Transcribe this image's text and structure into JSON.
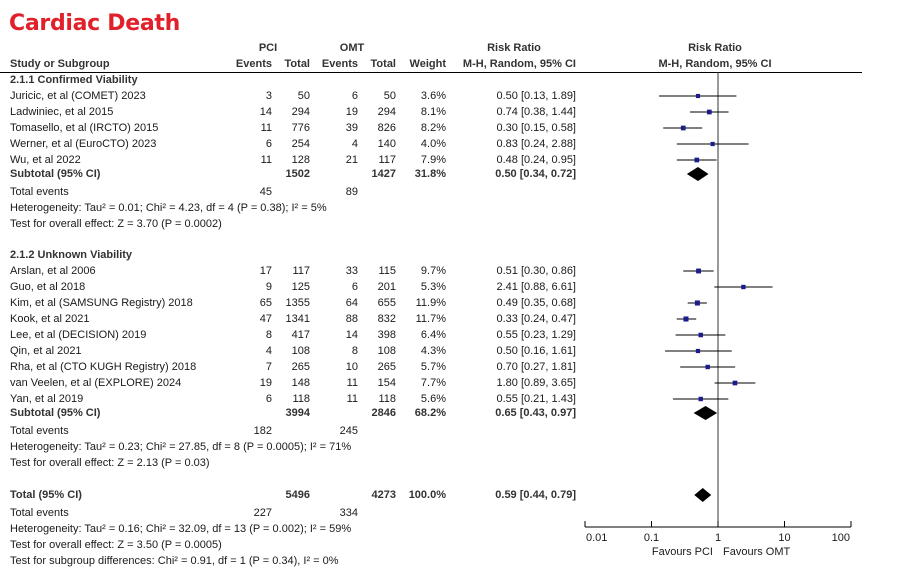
{
  "title": "Cardiac Death",
  "header": {
    "group1": "PCI",
    "group2": "OMT",
    "study_col": "Study or Subgroup",
    "events": "Events",
    "total": "Total",
    "weight": "Weight",
    "rr_title": "Risk Ratio",
    "rr_method": "M-H, Random, 95% CI",
    "plot_title": "Risk Ratio",
    "plot_method": "M-H, Random, 95% CI"
  },
  "subgroups": [
    {
      "name": "2.1.1 Confirmed Viability",
      "studies": [
        {
          "study": "Juricic, et al (COMET) 2023",
          "e1": "3",
          "n1": "50",
          "e2": "6",
          "n2": "50",
          "weight": "3.6%",
          "ci": "0.50 [0.13, 1.89]"
        },
        {
          "study": "Ladwiniec, et al 2015",
          "e1": "14",
          "n1": "294",
          "e2": "19",
          "n2": "294",
          "weight": "8.1%",
          "ci": "0.74 [0.38, 1.44]"
        },
        {
          "study": "Tomasello, et al (IRCTO) 2015",
          "e1": "11",
          "n1": "776",
          "e2": "39",
          "n2": "826",
          "weight": "8.2%",
          "ci": "0.30 [0.15, 0.58]"
        },
        {
          "study": "Werner, et al (EuroCTO) 2023",
          "e1": "6",
          "n1": "254",
          "e2": "4",
          "n2": "140",
          "weight": "4.0%",
          "ci": "0.83 [0.24, 2.88]"
        },
        {
          "study": "Wu, et al 2022",
          "e1": "11",
          "n1": "128",
          "e2": "21",
          "n2": "117",
          "weight": "7.9%",
          "ci": "0.48 [0.24, 0.95]"
        }
      ],
      "subtotal": {
        "label": "Subtotal (95% CI)",
        "n1": "1502",
        "n2": "1427",
        "weight": "31.8%",
        "ci": "0.50 [0.34, 0.72]"
      },
      "total_events": {
        "label": "Total events",
        "e1": "45",
        "e2": "89"
      },
      "heterogeneity": "Heterogeneity: Tau² = 0.01; Chi² = 4.23, df = 4 (P = 0.38); I² = 5%",
      "overall": "Test for overall effect: Z = 3.70 (P = 0.0002)"
    },
    {
      "name": "2.1.2 Unknown Viability",
      "studies": [
        {
          "study": "Arslan, et al 2006",
          "e1": "17",
          "n1": "117",
          "e2": "33",
          "n2": "115",
          "weight": "9.7%",
          "ci": "0.51 [0.30, 0.86]"
        },
        {
          "study": "Guo, et al 2018",
          "e1": "9",
          "n1": "125",
          "e2": "6",
          "n2": "201",
          "weight": "5.3%",
          "ci": "2.41 [0.88, 6.61]"
        },
        {
          "study": "Kim, et al (SAMSUNG Registry) 2018",
          "e1": "65",
          "n1": "1355",
          "e2": "64",
          "n2": "655",
          "weight": "11.9%",
          "ci": "0.49 [0.35, 0.68]"
        },
        {
          "study": "Kook, et al 2021",
          "e1": "47",
          "n1": "1341",
          "e2": "88",
          "n2": "832",
          "weight": "11.7%",
          "ci": "0.33 [0.24, 0.47]"
        },
        {
          "study": "Lee, et al (DECISION) 2019",
          "e1": "8",
          "n1": "417",
          "e2": "14",
          "n2": "398",
          "weight": "6.4%",
          "ci": "0.55 [0.23, 1.29]"
        },
        {
          "study": "Qin, et al 2021",
          "e1": "4",
          "n1": "108",
          "e2": "8",
          "n2": "108",
          "weight": "4.3%",
          "ci": "0.50 [0.16, 1.61]"
        },
        {
          "study": "Rha, et al (CTO KUGH Registry) 2018",
          "e1": "7",
          "n1": "265",
          "e2": "10",
          "n2": "265",
          "weight": "5.7%",
          "ci": "0.70 [0.27, 1.81]"
        },
        {
          "study": "van Veelen, et al (EXPLORE) 2024",
          "e1": "19",
          "n1": "148",
          "e2": "11",
          "n2": "154",
          "weight": "7.7%",
          "ci": "1.80 [0.89, 3.65]"
        },
        {
          "study": "Yan, et al 2019",
          "e1": "6",
          "n1": "118",
          "e2": "11",
          "n2": "118",
          "weight": "5.6%",
          "ci": "0.55 [0.21, 1.43]"
        }
      ],
      "subtotal": {
        "label": "Subtotal (95% CI)",
        "n1": "3994",
        "n2": "2846",
        "weight": "68.2%",
        "ci": "0.65 [0.43, 0.97]"
      },
      "total_events": {
        "label": "Total events",
        "e1": "182",
        "e2": "245"
      },
      "heterogeneity": "Heterogeneity: Tau² = 0.23; Chi² = 27.85, df = 8 (P = 0.0005); I² = 71%",
      "overall": "Test for overall effect: Z = 2.13 (P = 0.03)"
    }
  ],
  "total": {
    "label": "Total (95% CI)",
    "n1": "5496",
    "n2": "4273",
    "weight": "100.0%",
    "ci": "0.59 [0.44, 0.79]",
    "total_events": {
      "label": "Total events",
      "e1": "227",
      "e2": "334"
    },
    "heterogeneity": "Heterogeneity: Tau² = 0.16; Chi² = 32.09, df = 13 (P = 0.002); I² = 59%",
    "overall": "Test for overall effect: Z = 3.50 (P = 0.0005)",
    "subgroup_diff": "Test for subgroup differences: Chi² = 0.91, df = 1 (P = 0.34), I² = 0%"
  },
  "axis": {
    "ticks": [
      "0.01",
      "0.1",
      "1",
      "10",
      "100"
    ],
    "favours_left": "Favours PCI",
    "favours_right": "Favours OMT"
  },
  "colors": {
    "title": "#e0202a",
    "study_marker": "#1c1c8c",
    "diamond": "#000000"
  },
  "chart_data": {
    "type": "scatter",
    "subtype": "forest-plot",
    "title": "Cardiac Death",
    "xlabel": "Risk Ratio (M-H, Random, 95% CI), log scale",
    "xscale": "log",
    "xlim": [
      0.01,
      100
    ],
    "xticks": [
      0.01,
      0.1,
      1,
      10,
      100
    ],
    "reference_line": 1,
    "favours": [
      "Favours PCI",
      "Favours OMT"
    ],
    "series": [
      {
        "name": "2.1.1 Confirmed Viability",
        "points": [
          {
            "label": "Juricic, et al (COMET) 2023",
            "rr": 0.5,
            "lo": 0.13,
            "hi": 1.89,
            "weight": 3.6
          },
          {
            "label": "Ladwiniec, et al 2015",
            "rr": 0.74,
            "lo": 0.38,
            "hi": 1.44,
            "weight": 8.1
          },
          {
            "label": "Tomasello, et al (IRCTO) 2015",
            "rr": 0.3,
            "lo": 0.15,
            "hi": 0.58,
            "weight": 8.2
          },
          {
            "label": "Werner, et al (EuroCTO) 2023",
            "rr": 0.83,
            "lo": 0.24,
            "hi": 2.88,
            "weight": 4.0
          },
          {
            "label": "Wu, et al 2022",
            "rr": 0.48,
            "lo": 0.24,
            "hi": 0.95,
            "weight": 7.9
          }
        ],
        "pooled": {
          "rr": 0.5,
          "lo": 0.34,
          "hi": 0.72,
          "weight": 31.8
        }
      },
      {
        "name": "2.1.2 Unknown Viability",
        "points": [
          {
            "label": "Arslan, et al 2006",
            "rr": 0.51,
            "lo": 0.3,
            "hi": 0.86,
            "weight": 9.7
          },
          {
            "label": "Guo, et al 2018",
            "rr": 2.41,
            "lo": 0.88,
            "hi": 6.61,
            "weight": 5.3
          },
          {
            "label": "Kim, et al (SAMSUNG Registry) 2018",
            "rr": 0.49,
            "lo": 0.35,
            "hi": 0.68,
            "weight": 11.9
          },
          {
            "label": "Kook, et al 2021",
            "rr": 0.33,
            "lo": 0.24,
            "hi": 0.47,
            "weight": 11.7
          },
          {
            "label": "Lee, et al (DECISION) 2019",
            "rr": 0.55,
            "lo": 0.23,
            "hi": 1.29,
            "weight": 6.4
          },
          {
            "label": "Qin, et al 2021",
            "rr": 0.5,
            "lo": 0.16,
            "hi": 1.61,
            "weight": 4.3
          },
          {
            "label": "Rha, et al (CTO KUGH Registry) 2018",
            "rr": 0.7,
            "lo": 0.27,
            "hi": 1.81,
            "weight": 5.7
          },
          {
            "label": "van Veelen, et al (EXPLORE) 2024",
            "rr": 1.8,
            "lo": 0.89,
            "hi": 3.65,
            "weight": 7.7
          },
          {
            "label": "Yan, et al 2019",
            "rr": 0.55,
            "lo": 0.21,
            "hi": 1.43,
            "weight": 5.6
          }
        ],
        "pooled": {
          "rr": 0.65,
          "lo": 0.43,
          "hi": 0.97,
          "weight": 68.2
        }
      }
    ],
    "overall": {
      "rr": 0.59,
      "lo": 0.44,
      "hi": 0.79,
      "weight": 100.0
    }
  }
}
